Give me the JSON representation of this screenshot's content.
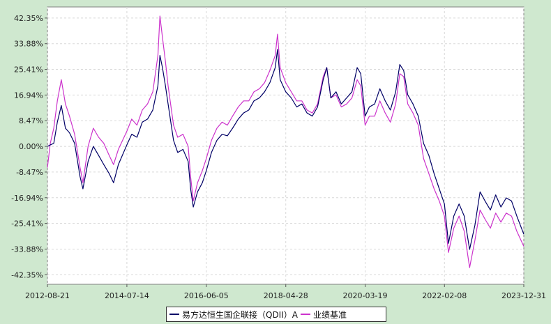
{
  "chart_data": {
    "type": "line",
    "title": "",
    "xlabel": "",
    "ylabel": "",
    "ylim": [
      -45.5,
      46.0
    ],
    "x_ticks": [
      "2012-08-21",
      "2014-07-14",
      "2016-06-05",
      "2018-04-28",
      "2020-03-19",
      "2022-02-08",
      "2023-12-31"
    ],
    "y_ticks": [
      "42.35%",
      "33.88%",
      "25.41%",
      "16.94%",
      "8.47%",
      "0.00%",
      "-8.47%",
      "-16.94%",
      "-25.41%",
      "-33.88%",
      "-42.35%"
    ],
    "y_tick_values": [
      42.35,
      33.88,
      25.41,
      16.94,
      8.47,
      0.0,
      -8.47,
      -16.94,
      -25.41,
      -33.88,
      -42.35
    ],
    "grid": true,
    "legend_position": "bottom-center",
    "series": [
      {
        "name": "易方达恒生国企联接（QDII）A",
        "color": "#000066",
        "x": [
          "2012-08-21",
          "2012-09-15",
          "2012-10-15",
          "2012-11-15",
          "2012-12-20",
          "2013-01-25",
          "2013-03-01",
          "2013-04-15",
          "2013-06-01",
          "2013-06-26",
          "2013-08-10",
          "2013-09-25",
          "2013-11-10",
          "2013-12-25",
          "2014-02-10",
          "2014-03-20",
          "2014-05-01",
          "2014-07-14",
          "2014-08-25",
          "2014-10-10",
          "2014-11-25",
          "2015-01-10",
          "2015-02-25",
          "2015-04-10",
          "2015-04-28",
          "2015-05-20",
          "2015-06-15",
          "2015-07-08",
          "2015-08-24",
          "2015-09-30",
          "2015-11-15",
          "2015-12-30",
          "2016-01-20",
          "2016-02-12",
          "2016-03-20",
          "2016-05-01",
          "2016-06-05",
          "2016-07-20",
          "2016-09-05",
          "2016-10-20",
          "2016-12-05",
          "2017-01-20",
          "2017-03-10",
          "2017-04-25",
          "2017-06-10",
          "2017-07-25",
          "2017-09-10",
          "2017-10-25",
          "2017-12-10",
          "2018-01-26",
          "2018-02-15",
          "2018-03-10",
          "2018-04-28",
          "2018-06-15",
          "2018-08-01",
          "2018-09-15",
          "2018-10-30",
          "2018-12-15",
          "2019-01-30",
          "2019-03-20",
          "2019-04-20",
          "2019-05-25",
          "2019-07-10",
          "2019-08-25",
          "2019-10-10",
          "2019-11-25",
          "2020-01-10",
          "2020-02-10",
          "2020-03-19",
          "2020-04-25",
          "2020-06-10",
          "2020-07-25",
          "2020-09-10",
          "2020-10-25",
          "2020-12-10",
          "2021-01-15",
          "2021-02-18",
          "2021-03-25",
          "2021-05-10",
          "2021-06-25",
          "2021-08-10",
          "2021-09-25",
          "2021-11-10",
          "2021-12-25",
          "2022-02-08",
          "2022-03-15",
          "2022-04-30",
          "2022-06-15",
          "2022-07-30",
          "2022-09-15",
          "2022-10-31",
          "2022-12-15",
          "2023-01-27",
          "2023-03-15",
          "2023-04-30",
          "2023-06-15",
          "2023-07-31",
          "2023-09-15",
          "2023-10-31",
          "2023-12-31"
        ],
        "values": [
          0.0,
          0.5,
          1.0,
          8.0,
          13.5,
          6.0,
          4.5,
          1.0,
          -10.0,
          -14.0,
          -5.0,
          0.0,
          -3.0,
          -6.0,
          -9.0,
          -12.0,
          -6.0,
          0.5,
          4.0,
          3.0,
          8.0,
          9.0,
          12.0,
          20.0,
          30.0,
          26.0,
          20.0,
          14.0,
          2.0,
          -2.0,
          -1.0,
          -5.0,
          -14.0,
          -20.0,
          -15.0,
          -12.0,
          -8.0,
          -2.0,
          2.0,
          4.0,
          3.5,
          6.0,
          9.0,
          11.0,
          12.0,
          15.0,
          16.0,
          18.0,
          21.0,
          26.0,
          32.0,
          22.0,
          18.0,
          16.0,
          13.0,
          14.0,
          11.0,
          10.0,
          13.0,
          22.0,
          26.0,
          16.0,
          18.0,
          14.0,
          16.0,
          18.0,
          26.0,
          24.0,
          10.0,
          13.0,
          14.0,
          19.0,
          15.0,
          12.0,
          18.0,
          27.0,
          25.0,
          17.0,
          14.0,
          10.0,
          1.0,
          -3.0,
          -9.0,
          -14.0,
          -19.0,
          -32.0,
          -23.0,
          -19.0,
          -23.0,
          -34.0,
          -26.0,
          -15.0,
          -18.0,
          -21.0,
          -16.0,
          -20.0,
          -17.0,
          -18.0,
          -23.0,
          -29.0
        ]
      },
      {
        "name": "业绩基准",
        "color": "#cc33cc",
        "x": [
          "2012-08-21",
          "2012-09-15",
          "2012-10-15",
          "2012-11-15",
          "2012-12-20",
          "2013-01-25",
          "2013-03-01",
          "2013-04-15",
          "2013-06-01",
          "2013-06-26",
          "2013-08-10",
          "2013-09-25",
          "2013-11-10",
          "2013-12-25",
          "2014-02-10",
          "2014-03-20",
          "2014-05-01",
          "2014-07-14",
          "2014-08-25",
          "2014-10-10",
          "2014-11-25",
          "2015-01-10",
          "2015-02-25",
          "2015-04-10",
          "2015-04-28",
          "2015-05-20",
          "2015-06-15",
          "2015-07-08",
          "2015-08-24",
          "2015-09-30",
          "2015-11-15",
          "2015-12-30",
          "2016-01-20",
          "2016-02-12",
          "2016-03-20",
          "2016-05-01",
          "2016-06-05",
          "2016-07-20",
          "2016-09-05",
          "2016-10-20",
          "2016-12-05",
          "2017-01-20",
          "2017-03-10",
          "2017-04-25",
          "2017-06-10",
          "2017-07-25",
          "2017-09-10",
          "2017-10-25",
          "2017-12-10",
          "2018-01-26",
          "2018-02-15",
          "2018-03-10",
          "2018-04-28",
          "2018-06-15",
          "2018-08-01",
          "2018-09-15",
          "2018-10-30",
          "2018-12-15",
          "2019-01-30",
          "2019-03-20",
          "2019-04-20",
          "2019-05-25",
          "2019-07-10",
          "2019-08-25",
          "2019-10-10",
          "2019-11-25",
          "2020-01-10",
          "2020-02-10",
          "2020-03-19",
          "2020-04-25",
          "2020-06-10",
          "2020-07-25",
          "2020-09-10",
          "2020-10-25",
          "2020-12-10",
          "2021-01-15",
          "2021-02-18",
          "2021-03-25",
          "2021-05-10",
          "2021-06-25",
          "2021-08-10",
          "2021-09-25",
          "2021-11-10",
          "2021-12-25",
          "2022-02-08",
          "2022-03-15",
          "2022-04-30",
          "2022-06-15",
          "2022-07-30",
          "2022-09-15",
          "2022-10-31",
          "2022-12-15",
          "2023-01-27",
          "2023-03-15",
          "2023-04-30",
          "2023-06-15",
          "2023-07-31",
          "2023-09-15",
          "2023-10-31",
          "2023-12-31"
        ],
        "values": [
          -7.0,
          1.0,
          6.0,
          15.0,
          22.0,
          14.0,
          10.0,
          4.0,
          -7.0,
          -12.0,
          0.0,
          6.0,
          3.0,
          1.0,
          -3.0,
          -6.0,
          -1.0,
          5.0,
          9.0,
          7.0,
          12.0,
          14.0,
          18.0,
          30.0,
          43.0,
          36.0,
          28.0,
          20.0,
          7.0,
          3.0,
          4.0,
          0.0,
          -10.0,
          -18.0,
          -12.0,
          -8.0,
          -4.0,
          2.0,
          6.0,
          8.0,
          7.0,
          10.0,
          13.0,
          15.0,
          15.0,
          18.0,
          19.0,
          21.0,
          25.0,
          30.0,
          37.0,
          26.0,
          21.0,
          18.0,
          15.0,
          15.0,
          12.0,
          11.0,
          14.0,
          23.0,
          26.0,
          16.0,
          17.0,
          13.0,
          14.0,
          16.0,
          22.0,
          20.0,
          7.0,
          10.0,
          10.0,
          15.0,
          11.0,
          8.0,
          14.0,
          24.0,
          23.0,
          14.0,
          11.0,
          7.0,
          -4.0,
          -9.0,
          -14.0,
          -18.0,
          -23.0,
          -35.0,
          -27.0,
          -23.0,
          -28.0,
          -40.0,
          -31.0,
          -21.0,
          -24.0,
          -27.0,
          -22.0,
          -25.0,
          -22.0,
          -23.0,
          -28.0,
          -33.0
        ]
      }
    ]
  }
}
